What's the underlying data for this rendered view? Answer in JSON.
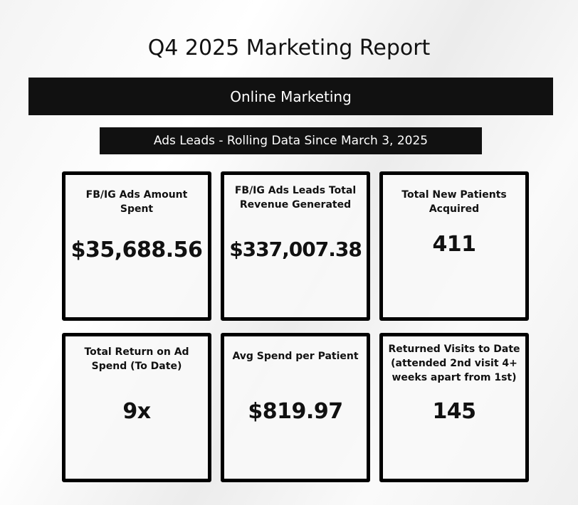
{
  "header": {
    "title": "Q4 2025 Marketing Report",
    "banner": "Online Marketing",
    "subtitle": "Ads Leads - Rolling Data Since March 3, 2025"
  },
  "cards": [
    {
      "label": "FB/IG Ads Amount Spent",
      "value": "$35,688.56"
    },
    {
      "label": "FB/IG Ads Leads Total Revenue Generated",
      "value": "$337,007.38"
    },
    {
      "label": "Total New Patients Acquired",
      "value": "411"
    },
    {
      "label": "Total Return on Ad Spend (To Date)",
      "value": "9x"
    },
    {
      "label": "Avg Spend per Patient",
      "value": "$819.97"
    },
    {
      "label": "Returned Visits to Date (attended 2nd visit 4+ weeks apart from 1st)",
      "value": "145"
    }
  ]
}
